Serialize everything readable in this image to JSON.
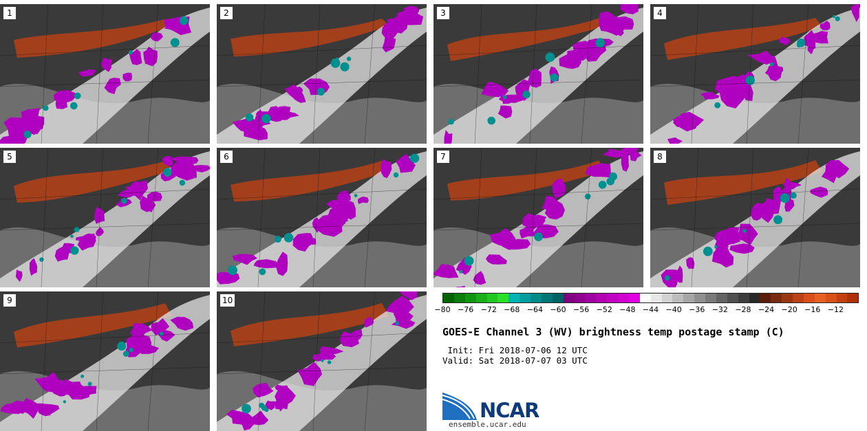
{
  "stamps": [
    {
      "label": "1"
    },
    {
      "label": "2"
    },
    {
      "label": "3"
    },
    {
      "label": "4"
    },
    {
      "label": "5"
    },
    {
      "label": "6"
    },
    {
      "label": "7"
    },
    {
      "label": "8"
    },
    {
      "label": "9"
    },
    {
      "label": "10"
    }
  ],
  "colorbar": {
    "colors": [
      "#006400",
      "#0a7d0a",
      "#129612",
      "#1aaf1a",
      "#22c822",
      "#2ae12a",
      "#00b4b4",
      "#009e9e",
      "#008a8a",
      "#007676",
      "#006262",
      "#800080",
      "#8f008f",
      "#a000a0",
      "#b000b0",
      "#c000c0",
      "#d000d0",
      "#e000e0",
      "#ffffff",
      "#e8e8e8",
      "#d2d2d2",
      "#bcbcbc",
      "#a6a6a6",
      "#909090",
      "#7a7a7a",
      "#646464",
      "#505050",
      "#3c3c3c",
      "#282828",
      "#5a1e0a",
      "#7a2a0e",
      "#9a3612",
      "#ba4216",
      "#da4e1a",
      "#e86020",
      "#d85018",
      "#c44010",
      "#b03008"
    ],
    "tick_labels": [
      "−80",
      "−76",
      "−72",
      "−68",
      "−64",
      "−60",
      "−56",
      "−52",
      "−48",
      "−44",
      "−40",
      "−36",
      "−32",
      "−28",
      "−24",
      "−20",
      "−16",
      "−12"
    ],
    "range": [
      -80,
      -8
    ]
  },
  "title": "GOES-E Channel 3 (WV) brightness temp postage stamp (C)",
  "init": " Init: Fri 2018-07-06 12 UTC",
  "valid": "Valid: Sat 2018-07-07 03 UTC",
  "logo": {
    "text": "NCAR",
    "url": "ensemble.ucar.edu"
  },
  "colors": {
    "dark_gray": "#3a3a3a",
    "mid_gray": "#6e6e6e",
    "light": "#e6e6e6",
    "magenta": "#b000c0",
    "teal": "#009090",
    "orange": "#b0401a"
  }
}
